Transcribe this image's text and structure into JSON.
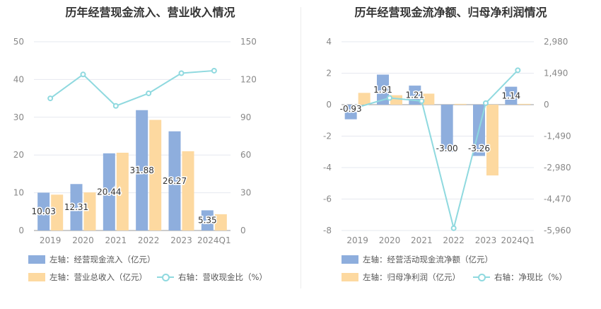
{
  "colors": {
    "bar1": "#8eaedd",
    "bar2": "#fdd9a0",
    "line": "#8fd9df",
    "grid": "#e6e8ef",
    "axis_text": "#888888"
  },
  "chart_data": [
    {
      "type": "bar",
      "title": "历年经营现金流入、营业收入情况",
      "categories": [
        "2019",
        "2020",
        "2021",
        "2022",
        "2023",
        "2024Q1"
      ],
      "y_left": {
        "ticks": [
          "0",
          "10",
          "20",
          "30",
          "40",
          "50"
        ],
        "ylim": [
          0,
          50
        ]
      },
      "y_right": {
        "ticks": [
          "0",
          "30",
          "60",
          "90",
          "120",
          "150"
        ],
        "ylim": [
          0,
          150
        ]
      },
      "series": [
        {
          "name": "左轴：经营现金流入（亿元）",
          "kind": "bar",
          "axis": "left",
          "values": [
            10.03,
            12.31,
            20.44,
            31.88,
            26.27,
            5.35
          ],
          "labels": [
            "10.03",
            "12.31",
            "20.44",
            "31.88",
            "26.27",
            "5.35"
          ]
        },
        {
          "name": "左轴：营业总收入（亿元）",
          "kind": "bar",
          "axis": "left",
          "values": [
            9.5,
            10.1,
            20.6,
            29.3,
            21.0,
            4.3
          ]
        },
        {
          "name": "右轴：营收现金比（%）",
          "kind": "line",
          "axis": "right",
          "values": [
            105,
            124,
            99,
            109,
            125,
            127
          ]
        }
      ]
    },
    {
      "type": "bar",
      "title": "历年经营现金流净额、归母净利润情况",
      "categories": [
        "2019",
        "2020",
        "2021",
        "2022",
        "2023",
        "2024Q1"
      ],
      "y_left": {
        "ticks": [
          "-8",
          "-6",
          "-4",
          "-2",
          "0",
          "2",
          "4"
        ],
        "ylim": [
          -8,
          4
        ]
      },
      "y_right": {
        "ticks": [
          "-5,960",
          "-4,470",
          "-2,980",
          "-1,490",
          "0",
          "1,490",
          "2,980"
        ],
        "ylim": [
          -5960,
          2980
        ]
      },
      "series": [
        {
          "name": "左轴：经营活动现金流净额（亿元）",
          "kind": "bar",
          "axis": "left",
          "values": [
            -0.93,
            1.91,
            1.21,
            -3.0,
            -3.26,
            1.14
          ],
          "labels": [
            "-0.93",
            "1.91",
            "1.21",
            "-3.00",
            "-3.26",
            "1.14"
          ]
        },
        {
          "name": "左轴：归母净利润（亿元）",
          "kind": "bar",
          "axis": "left",
          "values": [
            0.75,
            0.6,
            0.7,
            0.05,
            -4.5,
            0.05
          ]
        },
        {
          "name": "右轴：净现比（%）",
          "kind": "line",
          "axis": "right",
          "values": [
            -124,
            318,
            173,
            -5850,
            72,
            1630
          ]
        }
      ]
    }
  ]
}
